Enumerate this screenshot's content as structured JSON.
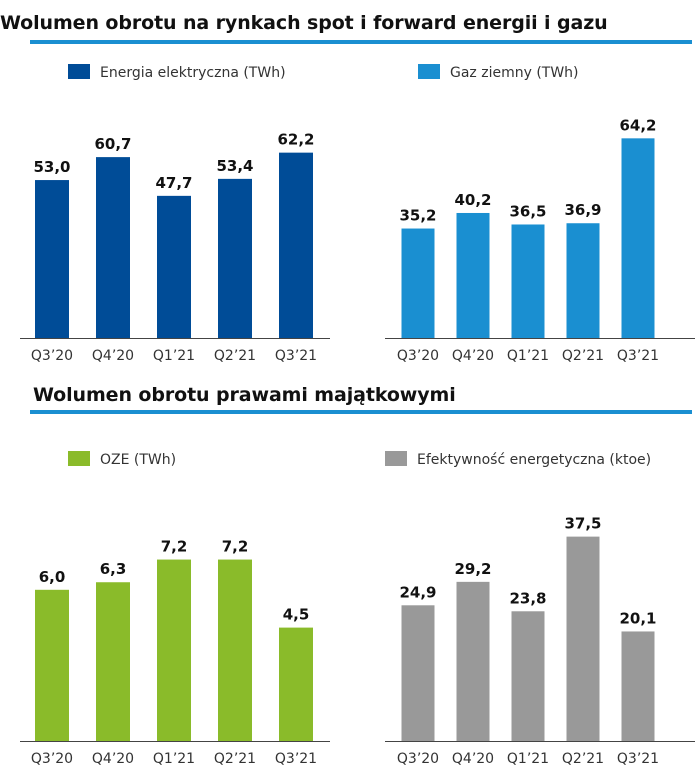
{
  "sections": [
    {
      "title": "Wolumen obrotu na rynkach spot i forward energii i gazu"
    },
    {
      "title": "Wolumen obrotu prawami majątkowymi"
    }
  ],
  "colors": {
    "electricity": "#004c97",
    "gas": "#1a8fd1",
    "oze": "#8abb2a",
    "efficiency": "#999999",
    "rule": "#1a8fd1"
  },
  "chart_data": [
    {
      "type": "bar",
      "legend": "Energia elektryczna (TWh)",
      "color_key": "electricity",
      "categories": [
        "Q3’20",
        "Q4’20",
        "Q1’21",
        "Q2’21",
        "Q3’21"
      ],
      "values": [
        53.0,
        60.7,
        47.7,
        53.4,
        62.2
      ],
      "labels": [
        "53,0",
        "60,7",
        "47,7",
        "53,4",
        "62,2"
      ]
    },
    {
      "type": "bar",
      "legend": "Gaz ziemny (TWh)",
      "color_key": "gas",
      "categories": [
        "Q3’20",
        "Q4’20",
        "Q1’21",
        "Q2’21",
        "Q3’21"
      ],
      "values": [
        35.2,
        40.2,
        36.5,
        36.9,
        64.2
      ],
      "labels": [
        "35,2",
        "40,2",
        "36,5",
        "36,9",
        "64,2"
      ]
    },
    {
      "type": "bar",
      "legend": "OZE (TWh)",
      "color_key": "oze",
      "categories": [
        "Q3’20",
        "Q4’20",
        "Q1’21",
        "Q2’21",
        "Q3’21"
      ],
      "values": [
        6.0,
        6.3,
        7.2,
        7.2,
        4.5
      ],
      "labels": [
        "6,0",
        "6,3",
        "7,2",
        "7,2",
        "4,5"
      ]
    },
    {
      "type": "bar",
      "legend": "Efektywność energetyczna (ktoe)",
      "color_key": "efficiency",
      "categories": [
        "Q3’20",
        "Q4’20",
        "Q1’21",
        "Q2’21",
        "Q3’21"
      ],
      "values": [
        24.9,
        29.2,
        23.8,
        37.5,
        20.1
      ],
      "labels": [
        "24,9",
        "29,2",
        "23,8",
        "37,5",
        "20,1"
      ]
    }
  ]
}
